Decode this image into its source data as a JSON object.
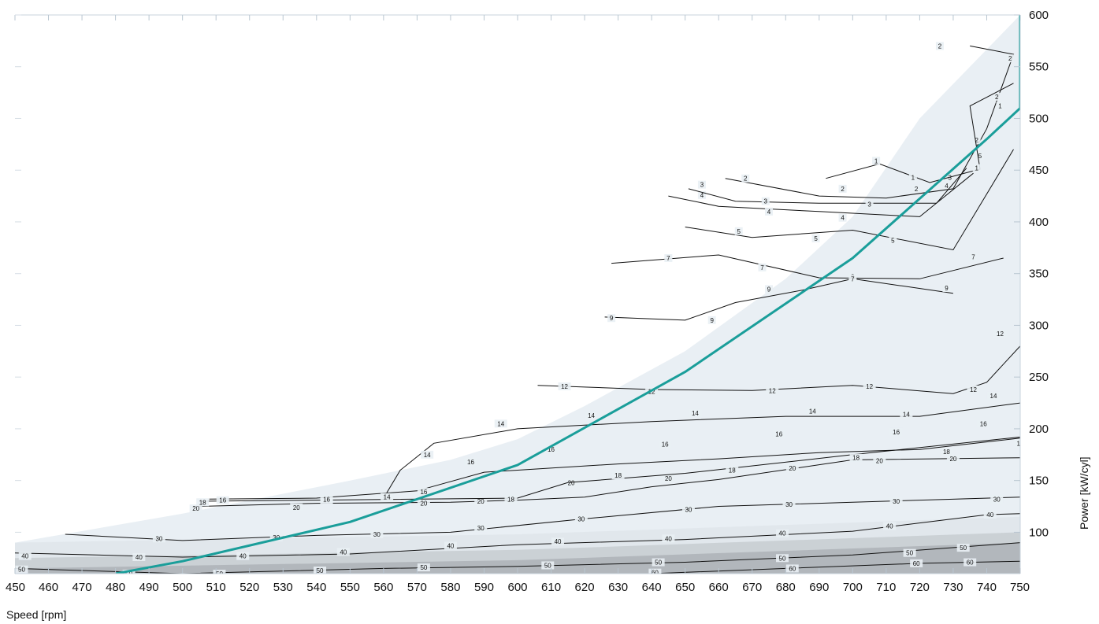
{
  "chart_data": {
    "type": "contour",
    "xlabel": "Speed [rpm]",
    "ylabel": "Power [kW/cyl]",
    "xlim": [
      450,
      750
    ],
    "ylim": [
      60,
      600
    ],
    "x_ticks": [
      450,
      460,
      470,
      480,
      490,
      500,
      510,
      520,
      530,
      540,
      550,
      560,
      570,
      580,
      590,
      600,
      610,
      620,
      630,
      640,
      650,
      660,
      670,
      680,
      690,
      700,
      710,
      720,
      730,
      740,
      750
    ],
    "y_ticks": [
      100,
      150,
      200,
      250,
      300,
      350,
      400,
      450,
      500,
      550,
      600
    ],
    "y_axis_side": "right",
    "grid": false,
    "colors": {
      "operating_line": "#1a9e9a",
      "contour_line": "#111111",
      "region_light": "#e9eff4",
      "region_dark": "#8a8e93"
    },
    "operating_envelope": [
      [
        450,
        90
      ],
      [
        500,
        118
      ],
      [
        550,
        150
      ],
      [
        580,
        170
      ],
      [
        600,
        190
      ],
      [
        620,
        222
      ],
      [
        650,
        275
      ],
      [
        680,
        345
      ],
      [
        700,
        405
      ],
      [
        720,
        500
      ],
      [
        750,
        600
      ]
    ],
    "shade_bands": [
      {
        "y": 100,
        "color": "#dde4ea"
      },
      {
        "y": 85,
        "color": "#c3c9ce"
      },
      {
        "y": 75,
        "color": "#a9aeb3"
      }
    ],
    "operating_line": {
      "name": "",
      "points": [
        [
          480,
          60
        ],
        [
          500,
          72
        ],
        [
          550,
          110
        ],
        [
          600,
          165
        ],
        [
          650,
          255
        ],
        [
          700,
          365
        ],
        [
          740,
          480
        ],
        [
          750,
          510
        ],
        [
          750,
          600
        ]
      ]
    },
    "contours": [
      {
        "level": 60,
        "label": "60",
        "points": [
          [
            640,
            60
          ],
          [
            680,
            65
          ],
          [
            720,
            70
          ],
          [
            750,
            72
          ]
        ],
        "labels_at": [
          [
            641,
            61
          ],
          [
            682,
            65
          ],
          [
            719,
            70
          ],
          [
            735,
            71
          ]
        ]
      },
      {
        "level": 50,
        "label": "50",
        "points": [
          [
            450,
            65
          ],
          [
            500,
            60
          ],
          [
            560,
            65
          ],
          [
            600,
            67
          ],
          [
            650,
            71
          ],
          [
            700,
            78
          ],
          [
            750,
            90
          ]
        ],
        "labels_at": [
          [
            452,
            64
          ],
          [
            484,
            60
          ],
          [
            511,
            60
          ],
          [
            541,
            63
          ],
          [
            572,
            66
          ],
          [
            609,
            68
          ],
          [
            642,
            71
          ],
          [
            679,
            75
          ],
          [
            717,
            80
          ],
          [
            733,
            85
          ]
        ]
      },
      {
        "level": 40,
        "label": "40",
        "points": [
          [
            450,
            80
          ],
          [
            500,
            76
          ],
          [
            550,
            79
          ],
          [
            600,
            88
          ],
          [
            650,
            93
          ],
          [
            700,
            101
          ],
          [
            740,
            117
          ],
          [
            750,
            118
          ]
        ],
        "labels_at": [
          [
            453,
            77
          ],
          [
            487,
            76
          ],
          [
            518,
            77
          ],
          [
            548,
            81
          ],
          [
            580,
            87
          ],
          [
            612,
            91
          ],
          [
            645,
            94
          ],
          [
            679,
            99
          ],
          [
            711,
            106
          ],
          [
            741,
            117
          ]
        ]
      },
      {
        "level": 30,
        "label": "30",
        "points": [
          [
            465,
            98
          ],
          [
            500,
            92
          ],
          [
            540,
            97
          ],
          [
            580,
            100
          ],
          [
            620,
            113
          ],
          [
            660,
            125
          ],
          [
            700,
            129
          ],
          [
            750,
            134
          ]
        ],
        "labels_at": [
          [
            493,
            94
          ],
          [
            528,
            95
          ],
          [
            558,
            98
          ],
          [
            589,
            104
          ],
          [
            619,
            113
          ],
          [
            651,
            122
          ],
          [
            681,
            127
          ],
          [
            713,
            130
          ],
          [
            743,
            132
          ]
        ]
      },
      {
        "level": 20,
        "label": "20",
        "points": [
          [
            505,
            125
          ],
          [
            540,
            128
          ],
          [
            580,
            129
          ],
          [
            600,
            131
          ],
          [
            620,
            134
          ],
          [
            640,
            144
          ],
          [
            660,
            151
          ],
          [
            700,
            170
          ],
          [
            750,
            172
          ]
        ],
        "labels_at": [
          [
            504,
            123
          ],
          [
            534,
            124
          ],
          [
            572,
            128
          ],
          [
            589,
            130
          ],
          [
            616,
            148
          ],
          [
            645,
            152
          ],
          [
            682,
            162
          ],
          [
            708,
            169
          ],
          [
            730,
            171
          ]
        ]
      },
      {
        "level": 18,
        "label": "18",
        "points": [
          [
            505,
            130
          ],
          [
            540,
            131
          ],
          [
            600,
            133
          ],
          [
            615,
            148
          ],
          [
            650,
            157
          ],
          [
            700,
            175
          ],
          [
            750,
            192
          ]
        ],
        "labels_at": [
          [
            506,
            129
          ],
          [
            543,
            131
          ],
          [
            598,
            132
          ],
          [
            630,
            155
          ],
          [
            664,
            160
          ],
          [
            701,
            172
          ],
          [
            728,
            178
          ],
          [
            750,
            186
          ]
        ]
      },
      {
        "level": 16,
        "label": "16",
        "points": [
          [
            508,
            132
          ],
          [
            540,
            133
          ],
          [
            570,
            140
          ],
          [
            590,
            158
          ],
          [
            630,
            166
          ],
          [
            660,
            171
          ],
          [
            690,
            177
          ],
          [
            720,
            180
          ],
          [
            750,
            191
          ]
        ],
        "labels_at": [
          [
            512,
            131
          ],
          [
            543,
            132
          ],
          [
            572,
            139
          ],
          [
            586,
            168
          ],
          [
            610,
            180
          ],
          [
            644,
            185
          ],
          [
            678,
            195
          ],
          [
            713,
            197
          ],
          [
            739,
            205
          ]
        ]
      },
      {
        "level": 14,
        "label": "14",
        "points": [
          [
            560,
            133
          ],
          [
            565,
            160
          ],
          [
            575,
            186
          ],
          [
            600,
            200
          ],
          [
            640,
            207
          ],
          [
            680,
            212
          ],
          [
            720,
            212
          ],
          [
            750,
            225
          ]
        ],
        "labels_at": [
          [
            561,
            134
          ],
          [
            573,
            175
          ],
          [
            595,
            205
          ],
          [
            622,
            213
          ],
          [
            653,
            215
          ],
          [
            688,
            217
          ],
          [
            716,
            214
          ],
          [
            742,
            232
          ]
        ]
      },
      {
        "level": 12,
        "label": "12",
        "points": [
          [
            606,
            242
          ],
          [
            640,
            238
          ],
          [
            670,
            237
          ],
          [
            700,
            242
          ],
          [
            730,
            234
          ],
          [
            740,
            245
          ],
          [
            750,
            280
          ]
        ],
        "labels_at": [
          [
            614,
            241
          ],
          [
            640,
            236
          ],
          [
            676,
            237
          ],
          [
            705,
            241
          ],
          [
            736,
            238
          ],
          [
            744,
            292
          ]
        ]
      },
      {
        "level": 9,
        "label": "9",
        "points": [
          [
            626,
            308
          ],
          [
            650,
            305
          ],
          [
            665,
            322
          ],
          [
            685,
            334
          ],
          [
            700,
            345
          ],
          [
            730,
            331
          ]
        ],
        "labels_at": [
          [
            628,
            307
          ],
          [
            658,
            305
          ],
          [
            675,
            335
          ],
          [
            700,
            347
          ],
          [
            728,
            336
          ]
        ]
      },
      {
        "level": 7,
        "label": "7",
        "points": [
          [
            628,
            360
          ],
          [
            660,
            368
          ],
          [
            690,
            346
          ],
          [
            720,
            345
          ],
          [
            745,
            365
          ]
        ],
        "labels_at": [
          [
            645,
            365
          ],
          [
            673,
            356
          ],
          [
            700,
            345
          ],
          [
            736,
            366
          ]
        ]
      },
      {
        "level": 5,
        "label": "5",
        "points": [
          [
            650,
            395
          ],
          [
            670,
            385
          ],
          [
            700,
            392
          ],
          [
            730,
            373
          ],
          [
            748,
            470
          ]
        ],
        "labels_at": [
          [
            666,
            391
          ],
          [
            689,
            384
          ],
          [
            712,
            382
          ],
          [
            738,
            464
          ]
        ]
      },
      {
        "level": 4,
        "label": "4",
        "points": [
          [
            645,
            425
          ],
          [
            660,
            415
          ],
          [
            690,
            410
          ],
          [
            720,
            405
          ],
          [
            736,
            447
          ]
        ],
        "labels_at": [
          [
            655,
            426
          ],
          [
            675,
            410
          ],
          [
            697,
            404
          ],
          [
            728,
            435
          ]
        ]
      },
      {
        "level": 3,
        "label": "3",
        "points": [
          [
            651,
            432
          ],
          [
            665,
            420
          ],
          [
            690,
            418
          ],
          [
            725,
            418
          ],
          [
            734,
            452
          ]
        ],
        "labels_at": [
          [
            655,
            436
          ],
          [
            674,
            420
          ],
          [
            705,
            417
          ],
          [
            729,
            443
          ]
        ]
      },
      {
        "level": 2,
        "label": "2",
        "points": [
          [
            662,
            442
          ],
          [
            690,
            425
          ],
          [
            710,
            423
          ],
          [
            730,
            432
          ],
          [
            740,
            490
          ],
          [
            748,
            562
          ],
          [
            735,
            570
          ]
        ],
        "labels_at": [
          [
            668,
            442
          ],
          [
            697,
            432
          ],
          [
            719,
            432
          ],
          [
            737,
            479
          ],
          [
            743,
            521
          ],
          [
            747,
            558
          ],
          [
            726,
            570
          ]
        ]
      },
      {
        "level": 1,
        "label": "1",
        "points": [
          [
            692,
            442
          ],
          [
            708,
            456
          ],
          [
            723,
            438
          ],
          [
            738,
            451
          ],
          [
            735,
            512
          ],
          [
            748,
            534
          ]
        ],
        "labels_at": [
          [
            707,
            459
          ],
          [
            718,
            443
          ],
          [
            737,
            452
          ],
          [
            744,
            512
          ]
        ]
      }
    ]
  }
}
